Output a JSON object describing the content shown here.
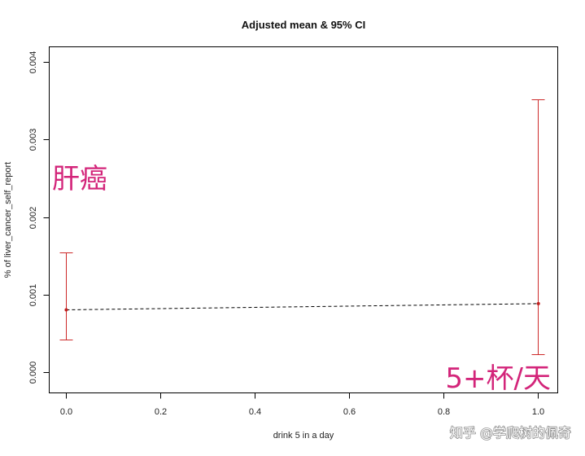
{
  "chart_data": {
    "type": "scatter",
    "title": "Adjusted mean & 95% CI",
    "xlabel": "drink 5 in a day",
    "ylabel": "% of liver_cancer_self_report",
    "xlim": [
      -0.036,
      1.041
    ],
    "ylim": [
      -0.00026,
      0.0042
    ],
    "x_ticks": [
      "0.0",
      "0.2",
      "0.4",
      "0.6",
      "0.8",
      "1.0"
    ],
    "y_ticks": [
      "0.000",
      "0.001",
      "0.002",
      "0.003",
      "0.004"
    ],
    "grid": false,
    "series": [
      {
        "x": [
          0,
          1
        ],
        "y": [
          0.00081,
          0.00089
        ],
        "ci_lower": [
          0.00042,
          0.00023
        ],
        "ci_upper": [
          0.00155,
          0.00352
        ]
      }
    ],
    "annotations": [
      "肝癌",
      "5+杯/天"
    ]
  },
  "colors": {
    "error_bar": "#CD2A2A",
    "point": "#C0201F",
    "trend_line": "#000000",
    "annotation": "#D3257A",
    "watermark": "#8F8F8F"
  },
  "watermark": "知乎 @学爬树的佩奇"
}
